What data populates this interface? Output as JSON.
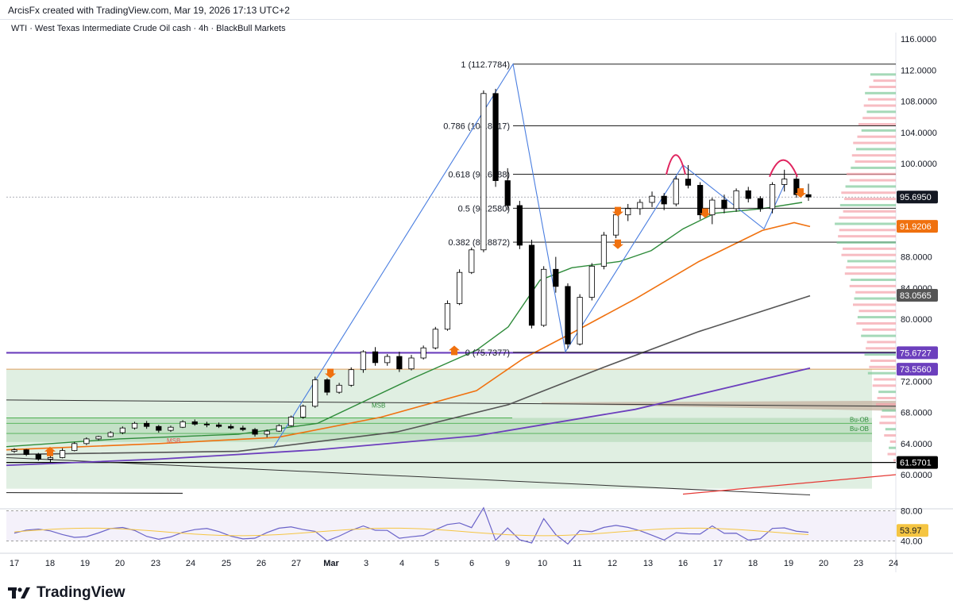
{
  "header": {
    "attribution": "ArcisFx created with TradingView.com, Mar 19, 2026 17:13 UTC+2"
  },
  "legend": {
    "symbol_line": "WTI · West Texas Intermediate Crude Oil cash · 4h · BlackBull Markets"
  },
  "footer": {
    "brand": "TradingView"
  },
  "colors": {
    "up": "#ffffff",
    "down": "#000000",
    "fib": "#000000",
    "purple": "#6c3fbd",
    "orange": "#f0710f",
    "green_ma": "#2e8b3a",
    "gray_ma": "#555555",
    "zone": "#d6ead8",
    "rsi": "#6a63c9"
  },
  "chart_data": {
    "type": "candlestick",
    "ylim": [
      58,
      118
    ],
    "y_ticks": [
      "116.0000",
      "112.0000",
      "108.0000",
      "104.0000",
      "100.0000",
      "96.0000",
      "92.0000",
      "88.0000",
      "84.0000",
      "80.0000",
      "76.0000",
      "72.0000",
      "68.0000",
      "64.0000",
      "60.0000"
    ],
    "x_ticks": [
      "17",
      "18",
      "19",
      "20",
      "23",
      "24",
      "25",
      "26",
      "27",
      "Mar",
      "3",
      "4",
      "5",
      "6",
      "9",
      "10",
      "11",
      "12",
      "13",
      "16",
      "17",
      "18",
      "19",
      "20",
      "23",
      "24"
    ],
    "fibonacci": [
      {
        "label": "1 (112.7784)",
        "value": 112.7784
      },
      {
        "label": "0.786 (104.8517)",
        "value": 104.8517
      },
      {
        "label": "0.618 (98.6288)",
        "value": 98.6288
      },
      {
        "label": "0.5 (94.2580)",
        "value": 94.258
      },
      {
        "label": "0.382 (89.8872)",
        "value": 89.8872
      },
      {
        "label": "0 (75.7377)",
        "value": 75.7377
      }
    ],
    "price_labels": [
      {
        "text": "95.6950",
        "value": 95.695,
        "color": "#131722"
      },
      {
        "text": "91.9206",
        "value": 91.9206,
        "color": "#f0710f"
      },
      {
        "text": "83.0565",
        "value": 83.0565,
        "color": "#555555"
      },
      {
        "text": "75.6727",
        "value": 75.6727,
        "color": "#6c3fbd"
      },
      {
        "text": "73.5560",
        "value": 73.556,
        "color": "#6c3fbd"
      },
      {
        "text": "61.5701",
        "value": 61.5701,
        "color": "#000000"
      }
    ],
    "zone_labels": [
      "MSB",
      "MSB",
      "Bu-OB",
      "Bu-OB"
    ],
    "candles": [
      [
        63.0,
        63.4,
        62.8,
        63.2
      ],
      [
        63.2,
        63.3,
        62.4,
        62.6
      ],
      [
        62.6,
        62.8,
        61.8,
        62.0
      ],
      [
        62.0,
        62.4,
        61.6,
        62.2
      ],
      [
        62.2,
        63.4,
        62.1,
        63.1
      ],
      [
        63.1,
        64.2,
        63.0,
        64.0
      ],
      [
        64.0,
        64.8,
        63.8,
        64.6
      ],
      [
        64.6,
        65.0,
        64.4,
        64.9
      ],
      [
        64.9,
        65.6,
        64.8,
        65.4
      ],
      [
        65.4,
        66.2,
        65.2,
        66.0
      ],
      [
        66.0,
        66.8,
        65.8,
        66.6
      ],
      [
        66.6,
        66.9,
        65.9,
        66.2
      ],
      [
        66.2,
        66.4,
        65.4,
        65.7
      ],
      [
        65.7,
        66.3,
        65.5,
        66.1
      ],
      [
        66.1,
        67.0,
        66.0,
        66.8
      ],
      [
        66.8,
        67.1,
        66.3,
        66.5
      ],
      [
        66.5,
        66.8,
        66.1,
        66.4
      ],
      [
        66.4,
        66.7,
        66.0,
        66.2
      ],
      [
        66.2,
        66.5,
        65.8,
        66.0
      ],
      [
        66.0,
        66.3,
        65.6,
        65.8
      ],
      [
        65.8,
        66.0,
        64.9,
        65.2
      ],
      [
        65.2,
        65.8,
        64.8,
        65.6
      ],
      [
        65.6,
        66.5,
        65.5,
        66.3
      ],
      [
        66.3,
        67.6,
        66.2,
        67.4
      ],
      [
        67.4,
        69.0,
        67.2,
        68.8
      ],
      [
        68.8,
        72.6,
        68.6,
        72.2
      ],
      [
        72.2,
        72.4,
        70.2,
        70.6
      ],
      [
        70.6,
        71.8,
        70.4,
        71.5
      ],
      [
        71.5,
        73.8,
        71.3,
        73.5
      ],
      [
        73.5,
        76.0,
        73.1,
        75.8
      ],
      [
        75.8,
        76.4,
        74.0,
        74.4
      ],
      [
        74.4,
        75.5,
        74.0,
        75.2
      ],
      [
        75.2,
        75.8,
        73.2,
        73.6
      ],
      [
        73.6,
        75.4,
        73.4,
        75.0
      ],
      [
        75.0,
        76.6,
        74.8,
        76.3
      ],
      [
        76.3,
        79.0,
        76.1,
        78.7
      ],
      [
        78.7,
        82.4,
        78.5,
        82.0
      ],
      [
        82.0,
        86.4,
        81.8,
        86.0
      ],
      [
        86.0,
        89.2,
        85.8,
        88.9
      ],
      [
        88.9,
        109.4,
        88.6,
        109.0
      ],
      [
        109.0,
        109.6,
        97.0,
        97.8
      ],
      [
        97.8,
        99.4,
        94.0,
        94.6
      ],
      [
        94.6,
        95.2,
        89.0,
        89.5
      ],
      [
        89.5,
        90.2,
        78.8,
        79.2
      ],
      [
        79.2,
        86.8,
        79.0,
        86.4
      ],
      [
        86.4,
        88.0,
        83.4,
        84.2
      ],
      [
        84.2,
        84.6,
        76.2,
        76.8
      ],
      [
        76.8,
        83.2,
        76.6,
        82.8
      ],
      [
        82.8,
        87.2,
        82.4,
        86.8
      ],
      [
        86.8,
        91.2,
        86.4,
        90.8
      ],
      [
        90.8,
        93.8,
        90.4,
        93.4
      ],
      [
        93.4,
        94.8,
        92.6,
        94.2
      ],
      [
        94.2,
        95.4,
        93.4,
        95.0
      ],
      [
        95.0,
        96.4,
        94.4,
        95.8
      ],
      [
        95.8,
        96.2,
        94.0,
        94.8
      ],
      [
        94.8,
        98.4,
        94.5,
        98.0
      ],
      [
        98.0,
        99.8,
        96.8,
        97.2
      ],
      [
        97.2,
        97.6,
        92.8,
        93.4
      ],
      [
        93.4,
        95.6,
        92.2,
        95.3
      ],
      [
        95.3,
        96.0,
        93.6,
        94.2
      ],
      [
        94.2,
        96.8,
        93.8,
        96.5
      ],
      [
        96.5,
        97.0,
        95.0,
        95.5
      ],
      [
        95.5,
        95.8,
        93.8,
        94.2
      ],
      [
        94.2,
        97.6,
        93.6,
        97.3
      ],
      [
        97.3,
        99.2,
        96.4,
        98.0
      ],
      [
        98.0,
        98.6,
        95.6,
        96.0
      ],
      [
        96.0,
        97.4,
        95.2,
        95.7
      ]
    ],
    "rsi": {
      "label": "53.97",
      "levels": [
        "80.00",
        "40.00"
      ],
      "range": [
        30,
        90
      ]
    }
  }
}
